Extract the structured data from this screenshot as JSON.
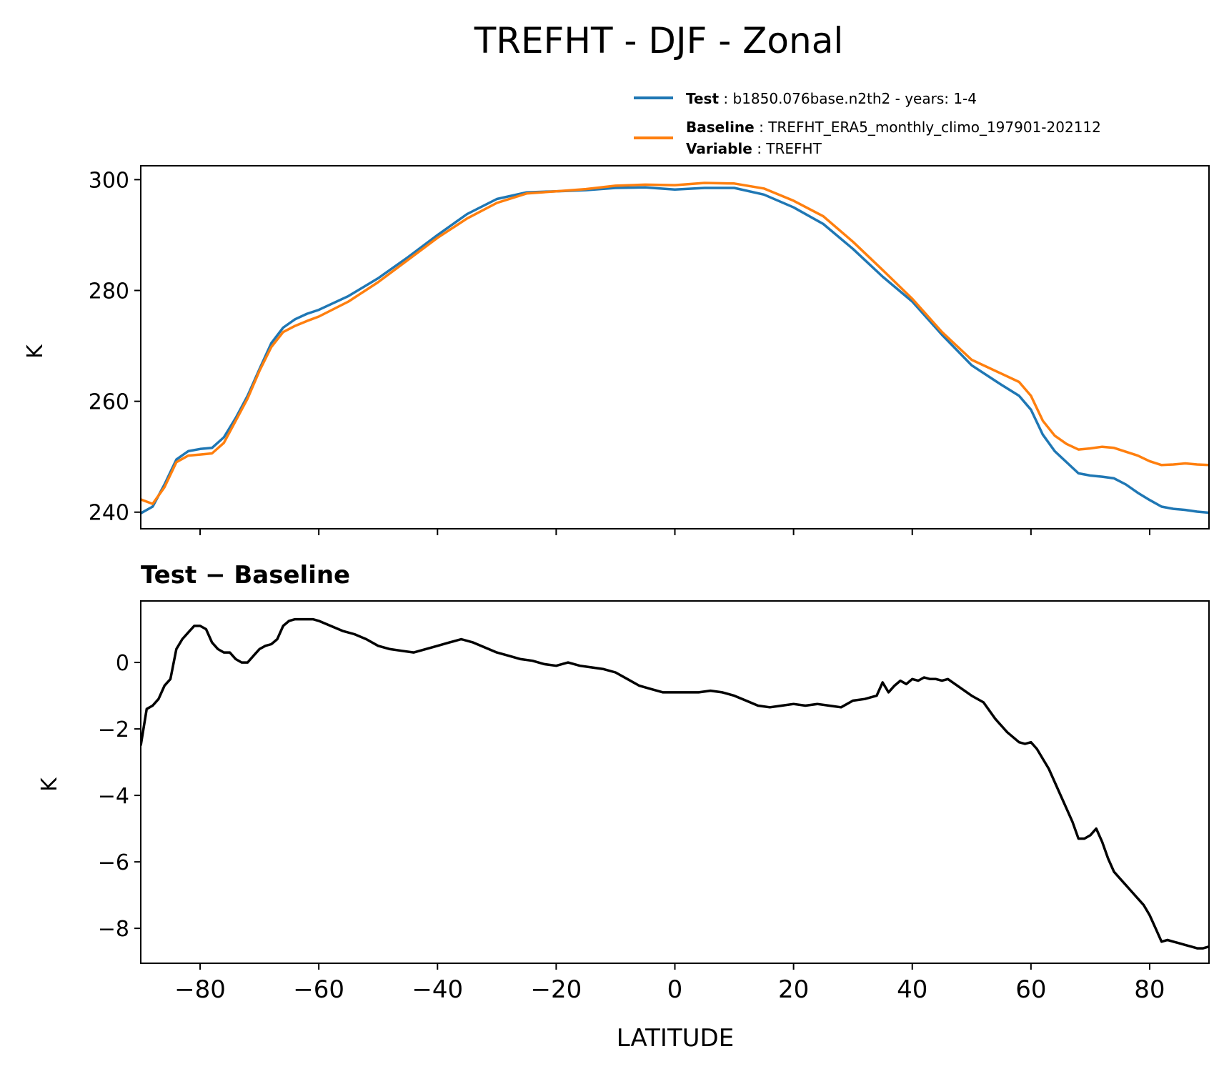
{
  "title": "TREFHT - DJF - Zonal",
  "legend": {
    "test_key": "Test",
    "test_value": "b1850.076base.n2th2 - years: 1-4",
    "baseline_key": "Baseline",
    "baseline_value": "TREFHT_ERA5_monthly_climo_197901-202112",
    "variable_key": "Variable",
    "variable_value": "TREFHT"
  },
  "colors": {
    "test": "#1f77b4",
    "baseline": "#ff7f0e",
    "difference": "#000000"
  },
  "chart_data": [
    {
      "type": "line",
      "title": "",
      "xlabel": "",
      "ylabel": "K",
      "xlim": [
        -90,
        90
      ],
      "ylim": [
        237,
        302.5
      ],
      "yticks": [
        240,
        260,
        280,
        300
      ],
      "xticks": [
        -80,
        -60,
        -40,
        -20,
        0,
        20,
        40,
        60,
        80
      ],
      "grid": false,
      "legend_position": "above",
      "series": [
        {
          "name": "Test",
          "color": "#1f77b4",
          "x": [
            -90,
            -88,
            -86,
            -84,
            -82,
            -80,
            -78,
            -76,
            -74,
            -72,
            -70,
            -68,
            -66,
            -64,
            -62,
            -60,
            -55,
            -50,
            -45,
            -40,
            -35,
            -30,
            -25,
            -20,
            -15,
            -10,
            -5,
            0,
            5,
            10,
            15,
            20,
            25,
            30,
            35,
            40,
            45,
            50,
            55,
            58,
            60,
            62,
            64,
            66,
            68,
            70,
            72,
            74,
            76,
            78,
            80,
            82,
            84,
            86,
            88,
            90
          ],
          "values": [
            239.8,
            241.0,
            245.0,
            249.5,
            251.0,
            251.4,
            251.6,
            253.5,
            257.0,
            261.0,
            265.8,
            270.5,
            273.3,
            274.8,
            275.8,
            276.5,
            279.0,
            282.2,
            286.0,
            290.0,
            293.8,
            296.5,
            297.7,
            297.9,
            298.1,
            298.5,
            298.6,
            298.2,
            298.5,
            298.5,
            297.3,
            295.0,
            292.0,
            287.5,
            282.5,
            278.0,
            272.0,
            266.5,
            263.0,
            261.0,
            258.5,
            254.0,
            251.0,
            249.0,
            247.0,
            246.6,
            246.4,
            246.1,
            245.0,
            243.5,
            242.2,
            241.0,
            240.6,
            240.4,
            240.1,
            239.9
          ]
        },
        {
          "name": "Baseline",
          "color": "#ff7f0e",
          "x": [
            -90,
            -88,
            -86,
            -84,
            -82,
            -80,
            -78,
            -76,
            -74,
            -72,
            -70,
            -68,
            -66,
            -64,
            -62,
            -60,
            -55,
            -50,
            -45,
            -40,
            -35,
            -30,
            -25,
            -20,
            -15,
            -10,
            -5,
            0,
            5,
            10,
            15,
            20,
            25,
            30,
            35,
            40,
            45,
            50,
            55,
            58,
            60,
            62,
            64,
            66,
            68,
            70,
            72,
            74,
            76,
            78,
            80,
            82,
            84,
            86,
            88,
            90
          ],
          "values": [
            242.3,
            241.5,
            244.5,
            249.0,
            250.2,
            250.4,
            250.6,
            252.5,
            256.5,
            260.5,
            265.5,
            269.8,
            272.5,
            273.6,
            274.5,
            275.3,
            278.0,
            281.5,
            285.5,
            289.5,
            293.0,
            295.8,
            297.5,
            297.9,
            298.3,
            298.9,
            299.1,
            299.0,
            299.4,
            299.3,
            298.4,
            296.2,
            293.4,
            288.8,
            283.7,
            278.5,
            272.5,
            267.5,
            265.0,
            263.5,
            261.0,
            256.5,
            253.8,
            252.3,
            251.3,
            251.5,
            251.8,
            251.6,
            250.9,
            250.2,
            249.2,
            248.5,
            248.6,
            248.8,
            248.6,
            248.5
          ]
        }
      ]
    },
    {
      "type": "line",
      "title": "Test − Baseline",
      "xlabel": "LATITUDE",
      "ylabel": "K",
      "xlim": [
        -90,
        90
      ],
      "ylim": [
        -9.05,
        1.85
      ],
      "yticks": [
        0,
        -2,
        -4,
        -6,
        -8
      ],
      "xticks": [
        -80,
        -60,
        -40,
        -20,
        0,
        20,
        40,
        60,
        80
      ],
      "grid": false,
      "series": [
        {
          "name": "Test − Baseline",
          "color": "#000000",
          "x": [
            -90,
            -89,
            -88,
            -87,
            -86,
            -85,
            -84,
            -83,
            -82,
            -81,
            -80,
            -79,
            -78,
            -77,
            -76,
            -75,
            -74,
            -73,
            -72,
            -71,
            -70,
            -69,
            -68,
            -67,
            -66,
            -65,
            -64,
            -63,
            -62,
            -61,
            -60,
            -58,
            -56,
            -54,
            -52,
            -50,
            -48,
            -46,
            -44,
            -42,
            -40,
            -38,
            -36,
            -34,
            -32,
            -30,
            -28,
            -26,
            -24,
            -22,
            -20,
            -18,
            -16,
            -14,
            -12,
            -10,
            -8,
            -6,
            -4,
            -2,
            0,
            2,
            4,
            6,
            8,
            10,
            12,
            14,
            16,
            18,
            20,
            22,
            24,
            26,
            28,
            30,
            32,
            34,
            35,
            36,
            37,
            38,
            39,
            40,
            41,
            42,
            43,
            44,
            45,
            46,
            48,
            50,
            52,
            54,
            56,
            58,
            59,
            60,
            61,
            62,
            63,
            64,
            65,
            66,
            67,
            68,
            69,
            70,
            71,
            72,
            73,
            74,
            75,
            76,
            77,
            78,
            79,
            80,
            81,
            82,
            83,
            84,
            85,
            86,
            87,
            88,
            89,
            90
          ],
          "values": [
            -2.5,
            -1.4,
            -1.3,
            -1.1,
            -0.7,
            -0.5,
            0.4,
            0.7,
            0.9,
            1.1,
            1.1,
            1.0,
            0.6,
            0.4,
            0.3,
            0.3,
            0.1,
            0.0,
            0.0,
            0.2,
            0.4,
            0.5,
            0.55,
            0.7,
            1.1,
            1.25,
            1.3,
            1.3,
            1.3,
            1.3,
            1.25,
            1.1,
            0.95,
            0.85,
            0.7,
            0.5,
            0.4,
            0.35,
            0.3,
            0.4,
            0.5,
            0.6,
            0.7,
            0.6,
            0.45,
            0.3,
            0.2,
            0.1,
            0.05,
            -0.05,
            -0.1,
            0.0,
            -0.1,
            -0.15,
            -0.2,
            -0.3,
            -0.5,
            -0.7,
            -0.8,
            -0.9,
            -0.9,
            -0.9,
            -0.9,
            -0.85,
            -0.9,
            -1.0,
            -1.15,
            -1.3,
            -1.35,
            -1.3,
            -1.25,
            -1.3,
            -1.25,
            -1.3,
            -1.35,
            -1.15,
            -1.1,
            -1.0,
            -0.6,
            -0.9,
            -0.7,
            -0.55,
            -0.65,
            -0.5,
            -0.55,
            -0.45,
            -0.5,
            -0.5,
            -0.55,
            -0.5,
            -0.75,
            -1.0,
            -1.2,
            -1.7,
            -2.1,
            -2.4,
            -2.45,
            -2.4,
            -2.6,
            -2.9,
            -3.2,
            -3.6,
            -4.0,
            -4.4,
            -4.8,
            -5.3,
            -5.3,
            -5.2,
            -5.0,
            -5.4,
            -5.9,
            -6.3,
            -6.5,
            -6.7,
            -6.9,
            -7.1,
            -7.3,
            -7.6,
            -8.0,
            -8.4,
            -8.35,
            -8.4,
            -8.45,
            -8.5,
            -8.55,
            -8.6,
            -8.6,
            -8.55
          ]
        }
      ]
    }
  ]
}
